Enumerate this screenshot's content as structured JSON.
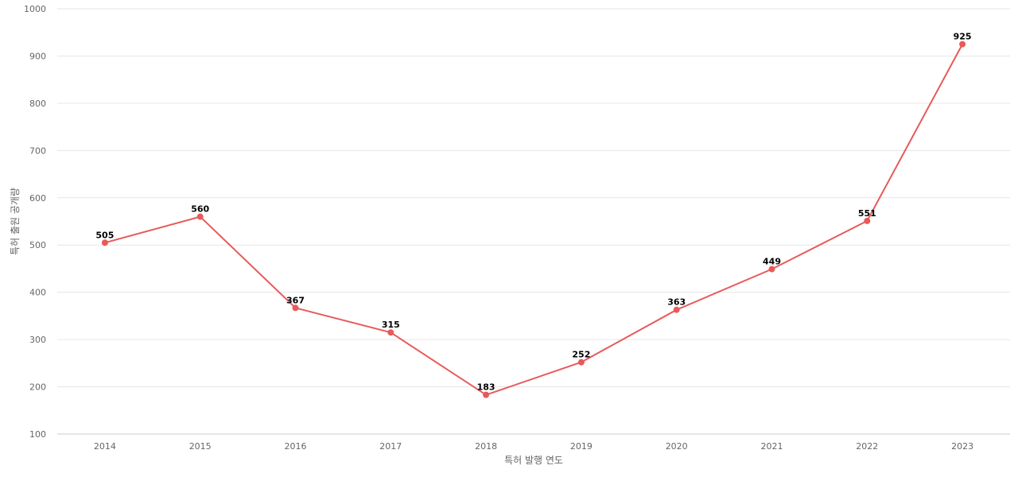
{
  "chart_data": {
    "type": "line",
    "title": "",
    "xlabel": "특허 발행 연도",
    "ylabel": "특허 출원 공개량",
    "categories": [
      "2014",
      "2015",
      "2016",
      "2017",
      "2018",
      "2019",
      "2020",
      "2021",
      "2022",
      "2023"
    ],
    "series": [
      {
        "values": [
          505,
          560,
          367,
          315,
          183,
          252,
          363,
          449,
          551,
          925
        ]
      }
    ],
    "ylim": [
      100,
      1000
    ],
    "yticks": [
      100,
      200,
      300,
      400,
      500,
      600,
      700,
      800,
      900,
      1000
    ],
    "grid": true,
    "legend": "none",
    "color": "#e85a5a"
  }
}
